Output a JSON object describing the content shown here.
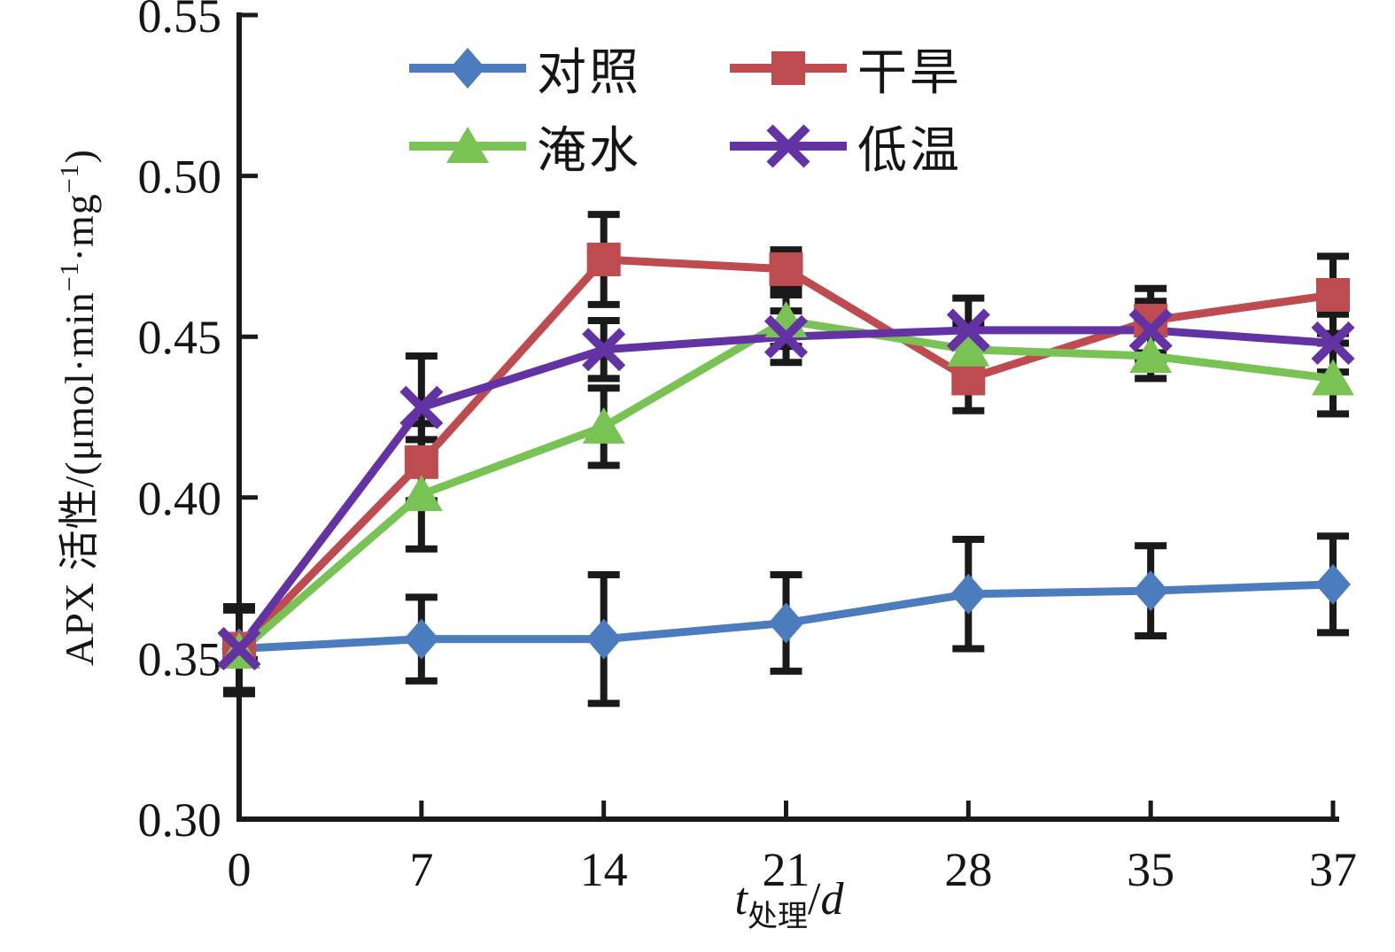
{
  "figure": {
    "background": "#ffffff",
    "text_color": "#151515",
    "axis_color": "#1a1a1a",
    "error_bar_color": "#1a1a1a"
  },
  "axes": {
    "y_tick_labels": [
      "0.30",
      "0.35",
      "0.40",
      "0.45",
      "0.50",
      "0.55"
    ],
    "x_tick_labels": [
      "0",
      "7",
      "14",
      "21",
      "28",
      "35",
      "37"
    ],
    "y_label_parts": {
      "prefix": "APX 活性/(μmol·min",
      "sup1": "−1",
      "mid": "·mg",
      "sup2": "−1",
      "suffix": ")"
    },
    "x_label_parts": {
      "t": "t",
      "sub": "处理",
      "slash": "/",
      "unit": "d"
    }
  },
  "chart_data": {
    "type": "line",
    "title": "",
    "xlabel": "t处理/d",
    "ylabel": "APX 活性/(μmol·min⁻¹·mg⁻¹)",
    "x_axis_type": "categorical",
    "categories": [
      0,
      7,
      14,
      21,
      28,
      35,
      37
    ],
    "ylim": [
      0.3,
      0.55
    ],
    "y_ticks": [
      0.3,
      0.35,
      0.4,
      0.45,
      0.5,
      0.55
    ],
    "grid": false,
    "legend_position": "top-center",
    "error_bars": true,
    "series": [
      {
        "key": "control",
        "name": "对照",
        "marker": "diamond",
        "color": "#4B7CBE",
        "values": [
          0.353,
          0.356,
          0.356,
          0.361,
          0.37,
          0.371,
          0.373
        ],
        "errors": [
          0.013,
          0.013,
          0.02,
          0.015,
          0.017,
          0.014,
          0.015
        ]
      },
      {
        "key": "drought",
        "name": "干旱",
        "marker": "square",
        "color": "#BE4B50",
        "values": [
          0.353,
          0.411,
          0.474,
          0.471,
          0.437,
          0.455,
          0.463
        ],
        "errors": [
          0.013,
          0.012,
          0.014,
          0.006,
          0.01,
          0.01,
          0.012
        ]
      },
      {
        "key": "waterlogging",
        "name": "淹水",
        "marker": "triangle",
        "color": "#79C354",
        "values": [
          0.352,
          0.401,
          0.422,
          0.455,
          0.446,
          0.444,
          0.437
        ],
        "errors": [
          0.013,
          0.017,
          0.012,
          0.008,
          0.008,
          0.007,
          0.011
        ]
      },
      {
        "key": "low_temperature",
        "name": "低温",
        "marker": "x",
        "color": "#6333A4",
        "values": [
          0.353,
          0.428,
          0.446,
          0.45,
          0.452,
          0.452,
          0.448
        ],
        "errors": [
          0.013,
          0.016,
          0.009,
          0.008,
          0.01,
          0.009,
          0.009
        ]
      }
    ]
  }
}
